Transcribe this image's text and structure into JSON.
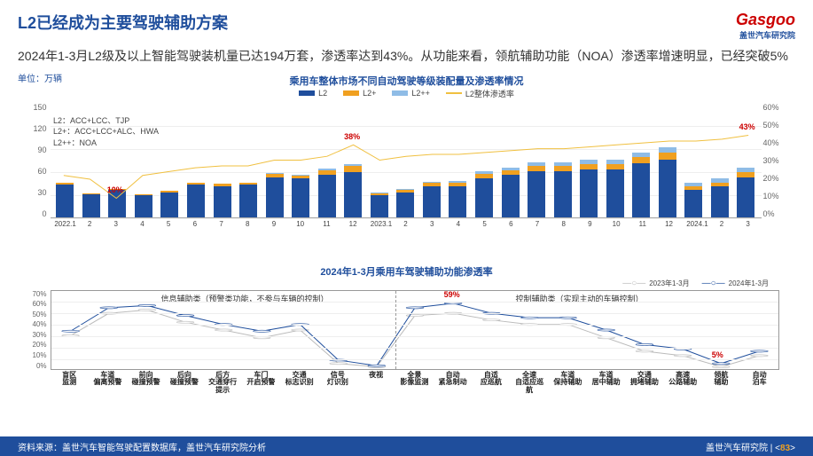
{
  "header": {
    "title": "L2已经成为主要驾驶辅助方案",
    "logo_en": "Gasgoo",
    "logo_cn": "盖世汽车研究院",
    "subtitle": "2024年1-3月L2级及以上智能驾驶装机量已达194万套，渗透率达到43%。从功能来看，领航辅助功能（NOA）渗透率增速明显，已经突破5%"
  },
  "chart1": {
    "title": "乘用车整体市场不同自动驾驶等级装配量及渗透率情况",
    "unit": "单位：万辆",
    "type": "stacked-bar+line",
    "legend": [
      "L2",
      "L2+",
      "L2++",
      "L2整体渗透率"
    ],
    "legend_colors": [
      "#1f4e9c",
      "#f0a020",
      "#8fbce6",
      "#f0c040"
    ],
    "defs": [
      "L2：ACC+LCC、TJP",
      "L2+：ACC+LCC+ALC、HWA",
      "L2++：NOA"
    ],
    "y_left": {
      "min": 0,
      "max": 150,
      "step": 30,
      "ticks": [
        "150",
        "120",
        "90",
        "60",
        "30",
        "0"
      ]
    },
    "y_right": {
      "min": 0,
      "max": 60,
      "step": 10,
      "ticks": [
        "60%",
        "50%",
        "40%",
        "30%",
        "20%",
        "10%",
        "0%"
      ]
    },
    "x_labels": [
      "2022.1",
      "2",
      "3",
      "4",
      "5",
      "6",
      "7",
      "8",
      "9",
      "10",
      "11",
      "12",
      "2023.1",
      "2",
      "3",
      "4",
      "5",
      "6",
      "7",
      "8",
      "9",
      "10",
      "11",
      "12",
      "2024.1",
      "2",
      "3"
    ],
    "series": {
      "L2": [
        42,
        30,
        35,
        28,
        32,
        42,
        40,
        42,
        52,
        50,
        55,
        58,
        28,
        32,
        40,
        40,
        50,
        55,
        60,
        60,
        62,
        62,
        70,
        75,
        35,
        40,
        52
      ],
      "L2+": [
        2,
        1,
        1,
        1,
        2,
        3,
        3,
        3,
        4,
        4,
        6,
        8,
        3,
        3,
        4,
        5,
        6,
        6,
        7,
        7,
        7,
        7,
        8,
        9,
        5,
        5,
        6
      ],
      "L2++": [
        0,
        0,
        0,
        0,
        0,
        0,
        0,
        0,
        1,
        1,
        2,
        3,
        1,
        1,
        2,
        2,
        3,
        3,
        4,
        4,
        5,
        5,
        6,
        7,
        4,
        5,
        6
      ],
      "penetration_pct": [
        22,
        20,
        10,
        22,
        24,
        26,
        27,
        27,
        30,
        30,
        32,
        38,
        30,
        32,
        33,
        33,
        34,
        35,
        36,
        36,
        37,
        38,
        39,
        40,
        40,
        41,
        43
      ]
    },
    "annotations": [
      {
        "label": "10%",
        "x_index": 2,
        "pct": 10,
        "color": "#c00"
      },
      {
        "label": "38%",
        "x_index": 11,
        "pct": 38,
        "color": "#c00"
      },
      {
        "label": "43%",
        "x_index": 26,
        "pct": 43,
        "color": "#c00"
      }
    ],
    "colors": {
      "L2": "#1f4e9c",
      "L2+": "#f0a020",
      "L2++": "#8fbce6",
      "line": "#f0c040",
      "grid": "#eeeeee",
      "bg": "#ffffff"
    }
  },
  "chart2": {
    "title": "2024年1-3月乘用车驾驶辅助功能渗透率",
    "type": "line",
    "legend": [
      "2023年1-3月",
      "2024年1-3月"
    ],
    "legend_colors": [
      "#bbbbbb",
      "#1f4e9c"
    ],
    "y": {
      "min": 0,
      "max": 70,
      "step": 10,
      "ticks": [
        "70%",
        "60%",
        "50%",
        "40%",
        "30%",
        "20%",
        "10%",
        "0%"
      ]
    },
    "x_labels": [
      "盲区监测",
      "车道偏离预警",
      "前向碰撞预警",
      "后向碰撞预警",
      "后方交通穿行提示",
      "车门开启预警",
      "交通标志识别",
      "信号灯识别",
      "夜视",
      "全景影像监测",
      "自动紧急制动",
      "自适应巡航",
      "全速自适应巡航",
      "车道保持辅助",
      "车道居中辅助",
      "交通拥堵辅助",
      "高速公路辅助",
      "领航辅助",
      "自动泊车"
    ],
    "category_labels": {
      "left": "信息辅助类（预警类功能，不参与车辆的控制）",
      "right": "控制辅助类（实现主动的车辆控制）",
      "split_after_index": 8
    },
    "series": {
      "s2023": [
        30,
        50,
        53,
        42,
        35,
        28,
        35,
        5,
        2,
        48,
        50,
        44,
        40,
        40,
        28,
        16,
        12,
        2,
        12
      ],
      "s2024": [
        34,
        55,
        57,
        48,
        40,
        34,
        40,
        8,
        3,
        55,
        59,
        50,
        46,
        46,
        35,
        22,
        18,
        5,
        16
      ]
    },
    "annotations": [
      {
        "label": "59%",
        "x_index": 10,
        "pct": 59,
        "color": "#c00"
      },
      {
        "label": "5%",
        "x_index": 17,
        "pct": 5,
        "color": "#c00"
      }
    ],
    "marker": "circle",
    "line_width": 1.5
  },
  "footer": {
    "source": "资料来源：盖世汽车智能驾驶配置数据库，盖世汽车研究院分析",
    "org": "盖世汽车研究院",
    "page": "83"
  }
}
